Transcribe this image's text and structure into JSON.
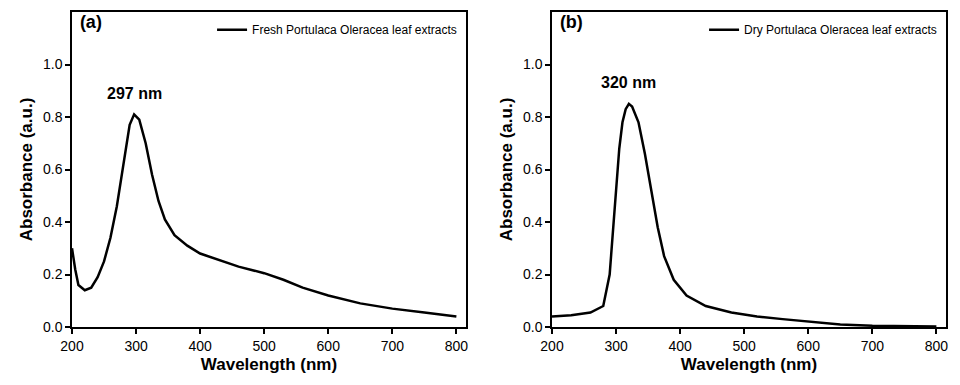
{
  "chart_data": [
    {
      "type": "line",
      "title": "(a)",
      "x": [
        200,
        205,
        210,
        220,
        230,
        240,
        250,
        260,
        270,
        280,
        290,
        297,
        305,
        315,
        325,
        335,
        345,
        360,
        380,
        400,
        430,
        460,
        500,
        530,
        560,
        600,
        650,
        700,
        750,
        800
      ],
      "series": [
        {
          "name": "Fresh Portulaca Oleracea leaf extracts",
          "color": "#000000",
          "values": [
            0.3,
            0.22,
            0.16,
            0.14,
            0.15,
            0.19,
            0.25,
            0.34,
            0.46,
            0.62,
            0.77,
            0.81,
            0.79,
            0.7,
            0.58,
            0.48,
            0.41,
            0.35,
            0.31,
            0.28,
            0.255,
            0.23,
            0.205,
            0.18,
            0.15,
            0.12,
            0.09,
            0.07,
            0.055,
            0.04
          ]
        }
      ],
      "xlabel": "Wavelength (nm)",
      "ylabel": "Absorbance (a.u.)",
      "xlim": [
        200,
        815
      ],
      "ylim": [
        0,
        1.2
      ],
      "xticks": [
        200,
        300,
        400,
        500,
        600,
        700,
        800
      ],
      "yticks": [
        {
          "value": 0,
          "label": "0.0"
        },
        0.2,
        0.4,
        0.6,
        0.8,
        {
          "value": 1,
          "label": "1.0"
        }
      ],
      "legend": "upper right",
      "annotations": [
        {
          "text": "297 nm",
          "x": 297,
          "y": 0.85
        }
      ]
    },
    {
      "type": "line",
      "title": "(b)",
      "x": [
        200,
        230,
        260,
        280,
        290,
        300,
        305,
        310,
        315,
        320,
        325,
        335,
        345,
        355,
        365,
        375,
        390,
        410,
        440,
        480,
        520,
        560,
        600,
        650,
        700,
        750,
        800
      ],
      "series": [
        {
          "name": "Dry Portulaca Oleracea leaf extracts",
          "color": "#000000",
          "values": [
            0.04,
            0.045,
            0.055,
            0.08,
            0.2,
            0.5,
            0.68,
            0.78,
            0.83,
            0.85,
            0.84,
            0.78,
            0.66,
            0.52,
            0.38,
            0.27,
            0.18,
            0.12,
            0.08,
            0.055,
            0.04,
            0.03,
            0.02,
            0.01,
            0.005,
            0.003,
            0.002
          ]
        }
      ],
      "xlabel": "Wavelength (nm)",
      "ylabel": "Absorbance (a.u.)",
      "xlim": [
        200,
        815
      ],
      "ylim": [
        0,
        1.2
      ],
      "xticks": [
        200,
        300,
        400,
        500,
        600,
        700,
        800
      ],
      "yticks": [
        {
          "value": 0,
          "label": "0.0"
        },
        0.2,
        0.4,
        0.6,
        0.8,
        {
          "value": 1,
          "label": "1.0"
        }
      ],
      "legend": "upper right",
      "annotations": [
        {
          "text": "320 nm",
          "x": 320,
          "y": 0.89
        }
      ]
    }
  ]
}
